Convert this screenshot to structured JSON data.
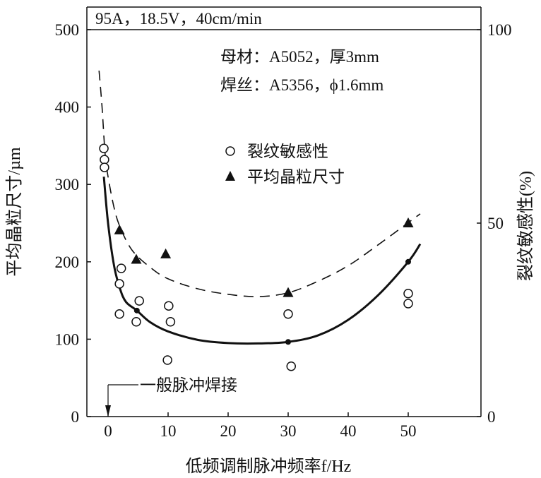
{
  "chart_data": {
    "type": "scatter",
    "header": "95A，18.5V，40cm/min",
    "notes": [
      "母材：A5052，厚3mm",
      "焊丝：A5356，ϕ1.6mm"
    ],
    "xlabel": "低频调制脉冲频率f/Hz",
    "ylabel_left": "平均晶粒尺寸/µm",
    "ylabel_right": "裂纹敏感性(%)",
    "xlim": [
      -3.5,
      62
    ],
    "ylim_left": [
      0,
      500
    ],
    "ylim_right": [
      0,
      100
    ],
    "x_ticks": [
      "0",
      "10",
      "20",
      "30",
      "40",
      "50"
    ],
    "x_tick_values": [
      0,
      10,
      20,
      30,
      40,
      50
    ],
    "y_left_ticks": [
      "0",
      "100",
      "200",
      "300",
      "400",
      "500"
    ],
    "y_left_tick_values": [
      0,
      100,
      200,
      300,
      400,
      500
    ],
    "y_right_ticks": [
      "0",
      "50",
      "100"
    ],
    "y_right_tick_values": [
      0,
      50,
      100
    ],
    "annotation": "一般脉冲焊接",
    "annotation_x": 0,
    "legend": [
      {
        "label": "裂纹敏感性",
        "marker": "open-circle"
      },
      {
        "label": "平均晶粒尺寸",
        "marker": "filled-triangle"
      }
    ],
    "series": [
      {
        "name": "裂纹敏感性",
        "axis": "right",
        "marker": "open-circle",
        "points": [
          [
            -0.7,
            69.3
          ],
          [
            -0.6,
            66.4
          ],
          [
            -0.6,
            64.4
          ],
          [
            2.2,
            38.3
          ],
          [
            1.9,
            34.3
          ],
          [
            5.2,
            29.9
          ],
          [
            1.9,
            26.5
          ],
          [
            4.7,
            24.5
          ],
          [
            10.1,
            28.6
          ],
          [
            10.4,
            24.5
          ],
          [
            9.9,
            14.6
          ],
          [
            30,
            26.5
          ],
          [
            30.5,
            13
          ],
          [
            50,
            31.8
          ],
          [
            50,
            29.2
          ]
        ]
      },
      {
        "name": "平均晶粒尺寸",
        "axis": "left",
        "marker": "filled-triangle",
        "points": [
          [
            1.9,
            241
          ],
          [
            4.7,
            203
          ],
          [
            9.6,
            210
          ],
          [
            30,
            160
          ],
          [
            50,
            250
          ]
        ]
      },
      {
        "name": "裂纹敏感性拟合曲线",
        "axis": "left",
        "style": "solid",
        "points": [
          [
            -0.7,
            310
          ],
          [
            0,
            250
          ],
          [
            1,
            195
          ],
          [
            2,
            165
          ],
          [
            3,
            148
          ],
          [
            4.8,
            137
          ],
          [
            7,
            122
          ],
          [
            10,
            110
          ],
          [
            15,
            99
          ],
          [
            20,
            95
          ],
          [
            25,
            94.5
          ],
          [
            30,
            96.5
          ],
          [
            35,
            105
          ],
          [
            40,
            125
          ],
          [
            45,
            157
          ],
          [
            50,
            200
          ],
          [
            52,
            223
          ]
        ],
        "dots": [
          [
            4.8,
            137
          ],
          [
            30,
            96.5
          ],
          [
            50,
            200
          ]
        ]
      },
      {
        "name": "晶粒尺寸拟合曲线",
        "axis": "left",
        "style": "dashed",
        "points": [
          [
            -1.5,
            447
          ],
          [
            -1,
            400
          ],
          [
            -0.5,
            340
          ],
          [
            0,
            310
          ],
          [
            1,
            270
          ],
          [
            2,
            245
          ],
          [
            4,
            215
          ],
          [
            7,
            193
          ],
          [
            10,
            178
          ],
          [
            15,
            165
          ],
          [
            20,
            158
          ],
          [
            25,
            155
          ],
          [
            30,
            160
          ],
          [
            35,
            175
          ],
          [
            40,
            195
          ],
          [
            45,
            222
          ],
          [
            52,
            262
          ]
        ]
      }
    ]
  }
}
